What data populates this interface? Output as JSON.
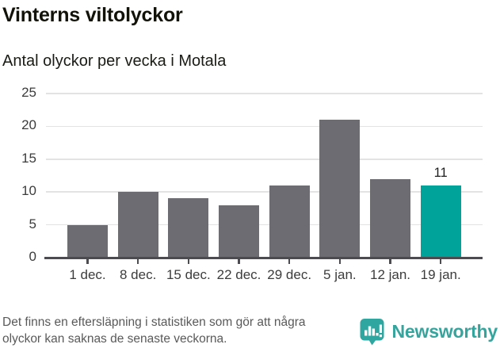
{
  "header": {
    "title": "Vinterns viltolyckor",
    "subtitle": "Antal olyckor per vecka i Motala"
  },
  "chart_data": {
    "type": "bar",
    "title": "Vinterns viltolyckor",
    "subtitle": "Antal olyckor per vecka i Motala",
    "categories": [
      "1 dec.",
      "8 dec.",
      "15 dec.",
      "22 dec.",
      "29 dec.",
      "5 jan.",
      "12 jan.",
      "19 jan."
    ],
    "values": [
      5,
      10,
      9,
      8,
      11,
      21,
      12,
      11
    ],
    "yticks": [
      0,
      5,
      10,
      15,
      20,
      25
    ],
    "ylim": [
      0,
      25
    ],
    "xlabel": "",
    "ylabel": "",
    "grid": true,
    "legend": "none",
    "highlight_index": 7,
    "data_labels": [
      {
        "index": 7,
        "text": "11"
      }
    ],
    "colors": {
      "bar": "#6d6c72",
      "highlight": "#00a39a",
      "axis": "#4b4b50",
      "gridline": "#e3e3e3",
      "tick_text": "#3c3c3c"
    }
  },
  "footer": {
    "note_lines": [
      "Det finns en eftersläpning i statistiken som gör att några",
      "olyckor kan saknas de senaste veckorna."
    ],
    "brand": {
      "name": "Newsworthy",
      "color": "#35a49d",
      "icon": "bar-chart-speech-bubble"
    }
  }
}
